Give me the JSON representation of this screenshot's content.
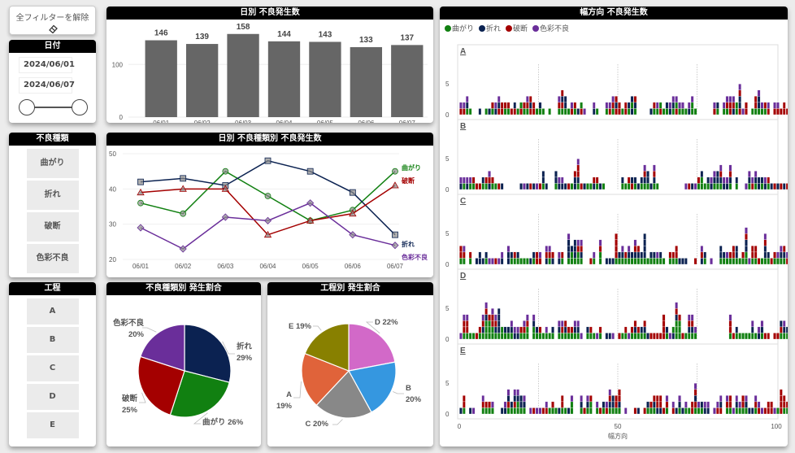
{
  "filters": {
    "clear_all_label": "全フィルターを解除",
    "clear_all_icon": "eraser-icon",
    "date": {
      "title": "日付",
      "start": "2024/06/01",
      "end": "2024/06/07",
      "range_fraction": [
        0.0,
        1.0
      ]
    },
    "defect_type": {
      "title": "不良種類",
      "items": [
        "曲がり",
        "折れ",
        "破断",
        "色彩不良"
      ]
    },
    "process": {
      "title": "工程",
      "items": [
        "A",
        "B",
        "C",
        "D",
        "E"
      ]
    }
  },
  "colors": {
    "曲がり": "#118011",
    "折れ": "#0b2251",
    "破断": "#a40000",
    "色彩不良": "#6a2e9a",
    "bar": "#666666",
    "A": "#e0633a",
    "B": "#3597e0",
    "C": "#888888",
    "D": "#d269c8",
    "E": "#888000"
  },
  "chart_data": [
    {
      "id": "daily",
      "type": "bar",
      "title": "日別 不良発生数",
      "categories": [
        "06/01",
        "06/02",
        "06/03",
        "06/04",
        "06/05",
        "06/06",
        "06/07"
      ],
      "values": [
        146,
        139,
        158,
        144,
        143,
        133,
        137
      ],
      "yticks": [
        0,
        100
      ],
      "ylim": [
        0,
        170
      ],
      "data_labels": true
    },
    {
      "id": "daily_by_type",
      "type": "line",
      "title": "日別 不良種類別 不良発生数",
      "categories": [
        "06/01",
        "06/02",
        "06/03",
        "06/04",
        "06/05",
        "06/06",
        "06/07"
      ],
      "ylim": [
        20,
        50
      ],
      "yticks": [
        20,
        30,
        40,
        50
      ],
      "legend_position": "right-end-labels",
      "series": [
        {
          "name": "曲がり",
          "marker": "circle",
          "values": [
            36,
            33,
            45,
            38,
            31,
            34,
            45
          ]
        },
        {
          "name": "折れ",
          "marker": "square",
          "values": [
            42,
            43,
            41,
            48,
            45,
            39,
            27
          ]
        },
        {
          "name": "破断",
          "marker": "triangle",
          "values": [
            39,
            40,
            40,
            27,
            31,
            33,
            41
          ]
        },
        {
          "name": "色彩不良",
          "marker": "diamond",
          "values": [
            29,
            23,
            32,
            31,
            36,
            27,
            24
          ]
        }
      ]
    },
    {
      "id": "type_share",
      "type": "pie",
      "title": "不良種類別 発生割合",
      "slices": [
        {
          "label": "折れ",
          "pct": 29
        },
        {
          "label": "曲がり",
          "pct": 26
        },
        {
          "label": "破断",
          "pct": 25
        },
        {
          "label": "色彩不良",
          "pct": 20
        }
      ]
    },
    {
      "id": "process_share",
      "type": "pie",
      "title": "工程別 発生割合",
      "slices": [
        {
          "label": "D",
          "pct": 22
        },
        {
          "label": "B",
          "pct": 20
        },
        {
          "label": "C",
          "pct": 20
        },
        {
          "label": "A",
          "pct": 19
        },
        {
          "label": "E",
          "pct": 19
        }
      ]
    },
    {
      "id": "width_direction",
      "type": "bar",
      "stacked": true,
      "title": "幅方向 不良発生数",
      "xlabel": "幅方向",
      "xlim": [
        0,
        100
      ],
      "xticks": [
        0,
        50,
        100
      ],
      "yticks": [
        0,
        5
      ],
      "ylim": [
        0,
        9
      ],
      "legend": [
        "曲がり",
        "折れ",
        "破断",
        "色彩不良"
      ],
      "legend_position": "top-left",
      "stack_order": [
        "曲がり",
        "折れ",
        "破断",
        "色彩不良"
      ],
      "panels": [
        {
          "label": "A",
          "stacks": "rp,rp,gnp,g,,,n,,g,n,gr,np,rnp,rr,gr,gr,r,rn,g,rg,gr,grp,rnr,rr,g,gn,g,,g,,,grp,grnr,gnn,g,rp,gr,n,rg,p,,,np,g,,,gp,rp,grp,rnr,rr,g,rr,gn,ngn,gnr,,,,,n,gr,gp,rg,g,gn,np,gnp,rgp,gp,gp,g,np,ggp,g,,,,,,rp,gn,,gp,grp,rrp,nrp,gg,rnnrp,p,rr,,g,grr,gnnp,gp,gr,rp,,rp,rp,r,rr,r,p"
        },
        {
          "label": "B",
          "stacks": "np,gp,np,gp,gr,r,r,gn,gr,nrp,gr,g,r,n,,,,,,n,p,n,r,n,p,r,gnn,n,,,gnn,np,np,n,r,g,nnr,gnrrp,r,n,g,g,nr,gr,n,g,,,,,,gn,g,gr,rn,gn,n,gn,gnrp,gnn,n,gnrp,g,,,,,,,,,p,r,n,p,gr,ggn,g,gn,np,gnp,gnn,gnrp,np,np,gnrp,,gn,,,p,gnp,rp,gnp,nn,gn,np,gr,n,r,n,r,n,r,,gr,p,gp,nr,,p,ngp,gnn,g,g,nnnnp,gr,rp,grr,nrr,n,g,ngp,n,gn,r,n,gr,ngp,grr"
        },
        {
          "label": "C",
          "stacks": "grr,grp,,gr,,n,nn,n,gn,p,p,r,p,np,,nnp,gn,gr,gn,g,g,g,n,gn,rr,rp,,nrp,grp,nr,,np,gr,,gnnnp,ggn,gnnn,ggrp,gnrp,,,r,gp,,ggrp,,n,n,n,grrrr,gn,gnp,gr,gnp,gn,gnrp,gnr,gn,gnnnn,g,gn,gn,gp,gn,g,,gr,gr,grr,n,n,n,,,r,,nrp,gn,,p,,,gnn,gn,gp,gr,grr,gnn,g,gr,ggnnrp,p,grr,grr,r,g,gnnrp,gn,r,gr,gp,gnp,gnr,rp,gnrrp,n,np,n,n,,n"
        },
        {
          "label": "D",
          "stacks": "p,grrp,grrp,g,g,r,gr,gnrp,gggnrp,gggr,ggrrp,gnrp,gnnnn,gg,gn,gn,gnp,np,np,gr,grp,ggrp,,ggnp,gn,gr,g,gp,g,gn,,gnp,grp,gnr,gr,gr,gnp,gnp,p,,gn,gr,g,p,gr,,n,n,p,,r,g,gr,p,gr,gnr,gr,gn,gnr,n,r,r,r,r,rrrr,gn,p,ng,gggnrp,gggr,r,g,gnrp,gnrp,gp,,,,,,,,,,,grrp,r,gn,g,g,g,g,gnp,g,np,gnp,r,r,,r,r,grn,gnp,gn,gp,g,gnp,p,gnp,gn,gnnp,gnr,gnnn"
        },
        {
          "label": "E",
          "stacks": "n,grr,,n,p,,,grp,gr,gr,gp,,,n,np,grnp,gn,grnp,ggnp,gnn,gnp,,p,r,p,p,r,rp,g,gr,g,n,grr,g,n,ggp,,,gnp,r,gnp,ggr,,gp,r,gn,rp,gnrp,gnn,grr,gnrr,,p,,,r,n,,r,gn,gr,gnr,nrr,nrr,r,grp,,rp,n,gnp,n,gp,g,rr,grnrp,gp,gn,np,np,,p,rp,rnp,,grp,grr,p,gnp,gp,grr,gnp,n,n,grp,rp,p,r,rr,rr,p,g,rrrr,grr,gr,gnrp,ngp,gnp,,ggrrrrrr"
        }
      ]
    }
  ]
}
